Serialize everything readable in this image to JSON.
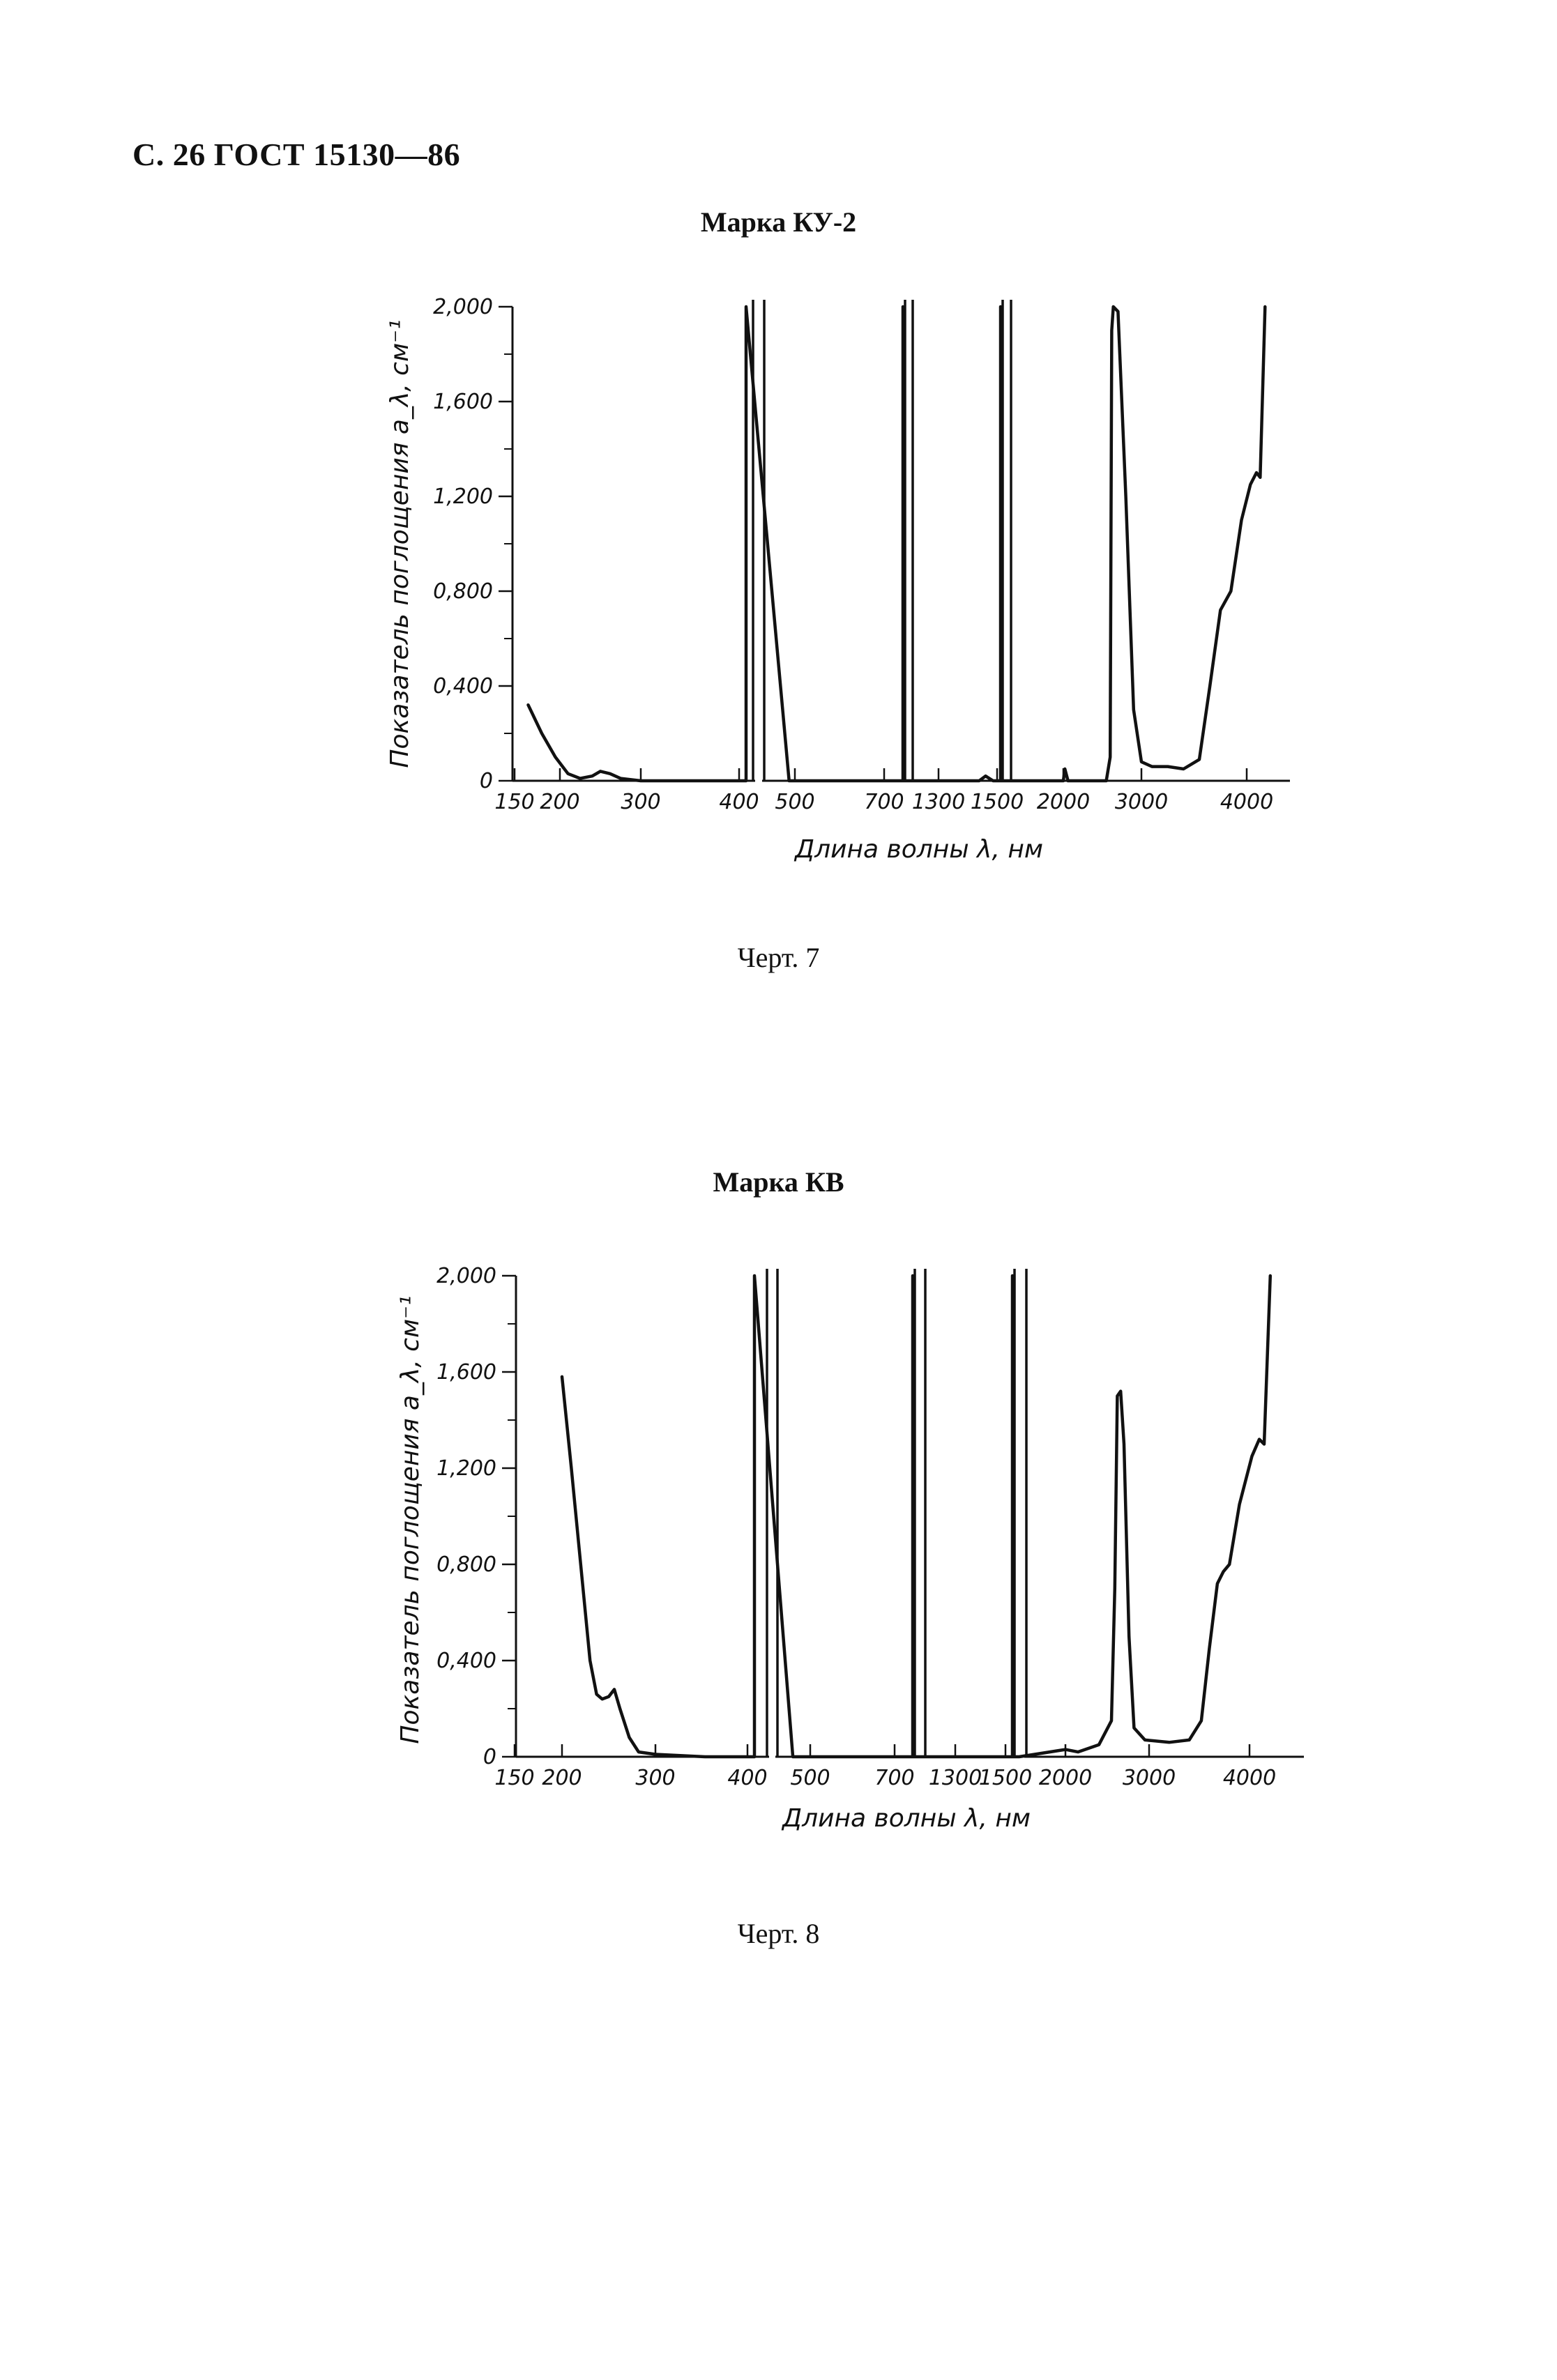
{
  "page": {
    "header": "С. 26 ГОСТ 15130—86"
  },
  "chart_data": [
    {
      "type": "line",
      "title": "Марка КУ-2",
      "caption": "Черт. 7",
      "xlabel": "Длина волны λ, нм",
      "ylabel": "Показатель поглощения a_λ, см⁻¹",
      "ylim": [
        0,
        2.0
      ],
      "yticks": [
        {
          "value": 0,
          "label": "0"
        },
        {
          "value": 0.4,
          "label": "0,400"
        },
        {
          "value": 0.8,
          "label": "0,800"
        },
        {
          "value": 1.2,
          "label": "1,200"
        },
        {
          "value": 1.6,
          "label": "1,600"
        },
        {
          "value": 2.0,
          "label": "2,000"
        }
      ],
      "xtick_labels": [
        "150",
        "200",
        "300",
        "400",
        "500",
        "700",
        "1300",
        "1500",
        "2000",
        "3000",
        "4000"
      ],
      "x_scale": "broken axis with segments 150–400, 400–700, 700–1500, 1500–4000 nm",
      "grid": false,
      "series": [
        {
          "values": [
            [
              165,
              0.32
            ],
            [
              180,
              0.2
            ],
            [
              195,
              0.1
            ],
            [
              210,
              0.03
            ],
            [
              225,
              0.01
            ],
            [
              240,
              0.02
            ],
            [
              250,
              0.04
            ],
            [
              262,
              0.03
            ],
            [
              275,
              0.01
            ],
            [
              300,
              0.0
            ],
            [
              350,
              0.0
            ],
            [
              400,
              0.0
            ],
            [
              400,
              2.0
            ],
            [
              450,
              0.0
            ],
            [
              700,
              0.0
            ],
            [
              700,
              2.0
            ],
            [
              700,
              0.0
            ],
            [
              1300,
              0.0
            ],
            [
              1360,
              0.02
            ],
            [
              1430,
              0.0
            ],
            [
              1500,
              0.0
            ],
            [
              1500,
              2.0
            ],
            [
              1500,
              0.0
            ],
            [
              2000,
              0.0
            ],
            [
              2020,
              0.05
            ],
            [
              2060,
              0.0
            ],
            [
              2550,
              0.0
            ],
            [
              2600,
              0.1
            ],
            [
              2620,
              1.9
            ],
            [
              2640,
              2.0
            ],
            [
              2700,
              1.98
            ],
            [
              2800,
              1.2
            ],
            [
              2900,
              0.3
            ],
            [
              3000,
              0.08
            ],
            [
              3100,
              0.06
            ],
            [
              3250,
              0.06
            ],
            [
              3400,
              0.05
            ],
            [
              3550,
              0.09
            ],
            [
              3650,
              0.4
            ],
            [
              3750,
              0.72
            ],
            [
              3850,
              0.8
            ],
            [
              3950,
              1.1
            ],
            [
              4030,
              1.25
            ],
            [
              4080,
              1.3
            ],
            [
              4110,
              1.28
            ],
            [
              4150,
              2.0
            ]
          ]
        }
      ]
    },
    {
      "type": "line",
      "title": "Марка КВ",
      "caption": "Черт. 8",
      "xlabel": "Длина волны λ, нм",
      "ylabel": "Показатель поглощения a_λ, см⁻¹",
      "ylim": [
        0,
        2.0
      ],
      "yticks": [
        {
          "value": 0,
          "label": "0"
        },
        {
          "value": 0.4,
          "label": "0,400"
        },
        {
          "value": 0.8,
          "label": "0,800"
        },
        {
          "value": 1.2,
          "label": "1,200"
        },
        {
          "value": 1.6,
          "label": "1,600"
        },
        {
          "value": 2.0,
          "label": "2,000"
        }
      ],
      "xtick_labels": [
        "150",
        "200",
        "300",
        "400",
        "500",
        "700",
        "1300",
        "1500",
        "2000",
        "3000",
        "4000"
      ],
      "x_scale": "broken axis with segments 150–400, 400–700, 700–1500, 1500–4000 nm",
      "grid": false,
      "series": [
        {
          "values": [
            [
              200,
              1.58
            ],
            [
              210,
              1.2
            ],
            [
              220,
              0.8
            ],
            [
              230,
              0.4
            ],
            [
              237,
              0.26
            ],
            [
              243,
              0.24
            ],
            [
              250,
              0.25
            ],
            [
              256,
              0.28
            ],
            [
              262,
              0.2
            ],
            [
              272,
              0.08
            ],
            [
              282,
              0.02
            ],
            [
              300,
              0.01
            ],
            [
              350,
              0.0
            ],
            [
              400,
              0.0
            ],
            [
              400,
              2.0
            ],
            [
              430,
              0.0
            ],
            [
              700,
              0.0
            ],
            [
              700,
              2.0
            ],
            [
              700,
              0.0
            ],
            [
              1500,
              0.0
            ],
            [
              1500,
              2.0
            ],
            [
              1500,
              0.0
            ],
            [
              1800,
              0.0
            ],
            [
              2000,
              0.03
            ],
            [
              2150,
              0.02
            ],
            [
              2400,
              0.05
            ],
            [
              2550,
              0.15
            ],
            [
              2590,
              0.7
            ],
            [
              2620,
              1.5
            ],
            [
              2660,
              1.52
            ],
            [
              2700,
              1.3
            ],
            [
              2760,
              0.5
            ],
            [
              2820,
              0.12
            ],
            [
              2950,
              0.07
            ],
            [
              3200,
              0.06
            ],
            [
              3400,
              0.07
            ],
            [
              3520,
              0.15
            ],
            [
              3600,
              0.45
            ],
            [
              3680,
              0.72
            ],
            [
              3740,
              0.77
            ],
            [
              3800,
              0.8
            ],
            [
              3900,
              1.05
            ],
            [
              4020,
              1.25
            ],
            [
              4080,
              1.32
            ],
            [
              4120,
              1.3
            ],
            [
              4170,
              2.0
            ]
          ]
        }
      ]
    }
  ]
}
